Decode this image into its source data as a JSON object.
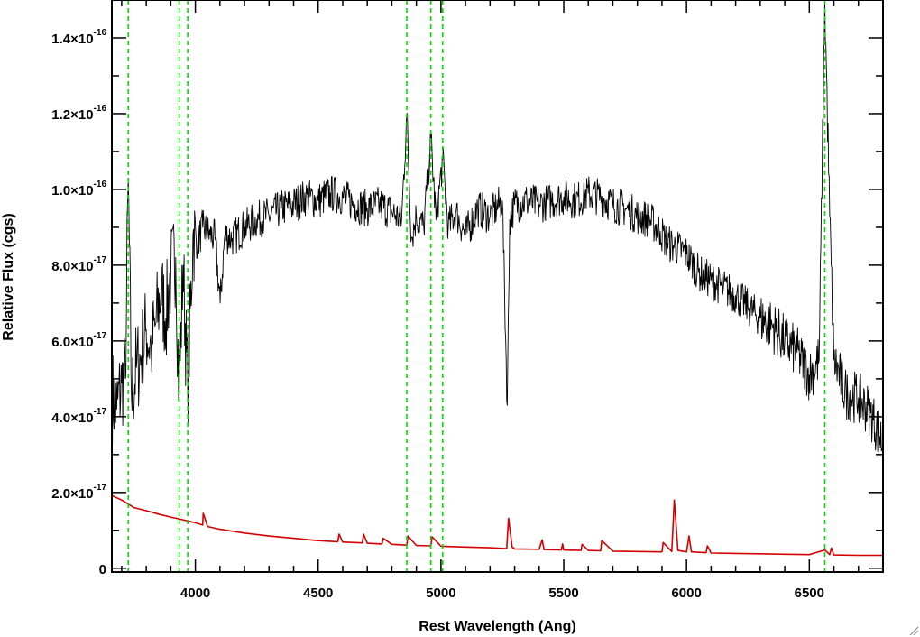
{
  "chart_data": {
    "type": "line",
    "xlabel": "Rest Wavelength (Ang)",
    "ylabel": "Relative Flux (cgs)",
    "xlim": [
      3660,
      6800
    ],
    "ylim": [
      -1e-18,
      1.5e-16
    ],
    "x_ticks": [
      {
        "value": 4000,
        "label": "4000"
      },
      {
        "value": 4500,
        "label": "4500"
      },
      {
        "value": 5000,
        "label": "5000"
      },
      {
        "value": 5500,
        "label": "5500"
      },
      {
        "value": 6000,
        "label": "6000"
      },
      {
        "value": 6500,
        "label": "6500"
      }
    ],
    "y_ticks": [
      {
        "value": 0,
        "mant": "0",
        "exp": ""
      },
      {
        "value": 2e-17,
        "mant": "2.0×10",
        "exp": "-17"
      },
      {
        "value": 4e-17,
        "mant": "4.0×10",
        "exp": "-17"
      },
      {
        "value": 6e-17,
        "mant": "6.0×10",
        "exp": "-17"
      },
      {
        "value": 8e-17,
        "mant": "8.0×10",
        "exp": "-17"
      },
      {
        "value": 1e-16,
        "mant": "1.0×10",
        "exp": "-16"
      },
      {
        "value": 1.2e-16,
        "mant": "1.2×10",
        "exp": "-16"
      },
      {
        "value": 1.4e-16,
        "mant": "1.4×10",
        "exp": "-16"
      }
    ],
    "vertical_markers": [
      3727,
      3934,
      3969,
      4861,
      4959,
      5007,
      6563
    ],
    "grid": false,
    "series": [
      {
        "color": "#000000",
        "x": [
          3660,
          3680,
          3700,
          3715,
          3727,
          3740,
          3760,
          3780,
          3800,
          3820,
          3840,
          3860,
          3880,
          3900,
          3920,
          3934,
          3950,
          3969,
          3990,
          4010,
          4030,
          4060,
          4080,
          4101,
          4120,
          4150,
          4200,
          4250,
          4300,
          4350,
          4400,
          4450,
          4500,
          4550,
          4600,
          4650,
          4700,
          4750,
          4800,
          4840,
          4861,
          4880,
          4900,
          4930,
          4959,
          4980,
          5007,
          5030,
          5060,
          5100,
          5150,
          5200,
          5250,
          5270,
          5280,
          5300,
          5350,
          5400,
          5450,
          5500,
          5550,
          5600,
          5650,
          5700,
          5750,
          5800,
          5850,
          5893,
          5920,
          5950,
          6000,
          6050,
          6100,
          6150,
          6200,
          6250,
          6300,
          6350,
          6400,
          6450,
          6500,
          6540,
          6563,
          6583,
          6600,
          6650,
          6700,
          6750,
          6800
        ],
        "values": [
          4.6e-17,
          4.2e-17,
          4.9e-17,
          5e-17,
          1.03e-16,
          4.5e-17,
          5.3e-17,
          5.6e-17,
          6.3e-17,
          5.8e-17,
          6.5e-17,
          7.3e-17,
          6.6e-17,
          7.8e-17,
          8.2e-17,
          4.5e-17,
          8e-17,
          4.6e-17,
          8.8e-17,
          8.6e-17,
          9e-17,
          8.8e-17,
          8.7e-17,
          7e-17,
          8.8e-17,
          8.7e-17,
          9e-17,
          9.2e-17,
          9.3e-17,
          9.5e-17,
          9.6e-17,
          9.8e-17,
          9.7e-17,
          9.9e-17,
          9.8e-17,
          9.6e-17,
          9.5e-17,
          9.6e-17,
          9.4e-17,
          9.2e-17,
          1.2e-16,
          8.7e-17,
          9.3e-17,
          9e-17,
          1.13e-16,
          9.2e-17,
          1.08e-16,
          9e-17,
          9.4e-17,
          8.8e-17,
          9.5e-17,
          9.3e-17,
          9.7e-17,
          4.3e-17,
          9.2e-17,
          9.6e-17,
          9.7e-17,
          9.6e-17,
          9.7e-17,
          9.8e-17,
          9.7e-17,
          9.9e-17,
          9.8e-17,
          9.6e-17,
          9.5e-17,
          9.3e-17,
          9.2e-17,
          8.9e-17,
          8.6e-17,
          8.5e-17,
          8.3e-17,
          7.8e-17,
          7.6e-17,
          7.4e-17,
          7.2e-17,
          6.9e-17,
          6.6e-17,
          6.4e-17,
          6e-17,
          5.7e-17,
          5.1e-17,
          5.5e-17,
          1.5e-16,
          9.3e-17,
          5.5e-17,
          4.6e-17,
          4.5e-17,
          4.1e-17,
          3.3e-17
        ]
      },
      {
        "color": "#d40000",
        "x": [
          3660,
          3700,
          3750,
          3800,
          3850,
          3900,
          3950,
          4000,
          4030,
          4032,
          4050,
          4100,
          4200,
          4300,
          4400,
          4500,
          4580,
          4585,
          4600,
          4680,
          4685,
          4700,
          4760,
          4765,
          4800,
          4861,
          4866,
          4900,
          4959,
          4964,
          5000,
          5100,
          5200,
          5268,
          5275,
          5290,
          5300,
          5400,
          5412,
          5420,
          5490,
          5495,
          5500,
          5570,
          5575,
          5600,
          5650,
          5655,
          5700,
          5800,
          5900,
          5905,
          5940,
          5950,
          5965,
          6000,
          6010,
          6020,
          6050,
          6080,
          6085,
          6100,
          6200,
          6300,
          6400,
          6500,
          6563,
          6583,
          6590,
          6600,
          6700,
          6800
        ],
        "values": [
          1.92e-17,
          1.8e-17,
          1.6e-17,
          1.52e-17,
          1.43e-17,
          1.35e-17,
          1.28e-17,
          1.2e-17,
          1.14e-17,
          1.45e-17,
          1.1e-17,
          1.03e-17,
          9.3e-18,
          8.5e-18,
          7.9e-18,
          7.3e-18,
          7e-18,
          9e-18,
          6.9e-18,
          6.7e-18,
          9e-18,
          6.6e-18,
          6.4e-18,
          7.9e-18,
          6.3e-18,
          6.1e-18,
          8.5e-18,
          6e-18,
          5.9e-18,
          8.3e-18,
          5.8e-18,
          5.6e-18,
          5.4e-18,
          5.2e-18,
          1.32e-17,
          5.6e-18,
          5.1e-18,
          5e-18,
          7.5e-18,
          4.9e-18,
          4.8e-18,
          6.4e-18,
          4.8e-18,
          4.7e-18,
          6.3e-18,
          4.7e-18,
          4.6e-18,
          7.3e-18,
          4.5e-18,
          4.4e-18,
          4.3e-18,
          6.8e-18,
          4.4e-18,
          1.8e-17,
          4.7e-18,
          4.3e-18,
          8.5e-18,
          4.3e-18,
          4.2e-18,
          4.1e-18,
          5.9e-18,
          4e-18,
          3.9e-18,
          3.8e-18,
          3.7e-18,
          3.6e-18,
          4.8e-18,
          3.6e-18,
          5.3e-18,
          3.5e-18,
          3.4e-18,
          3.4e-18
        ]
      }
    ]
  }
}
